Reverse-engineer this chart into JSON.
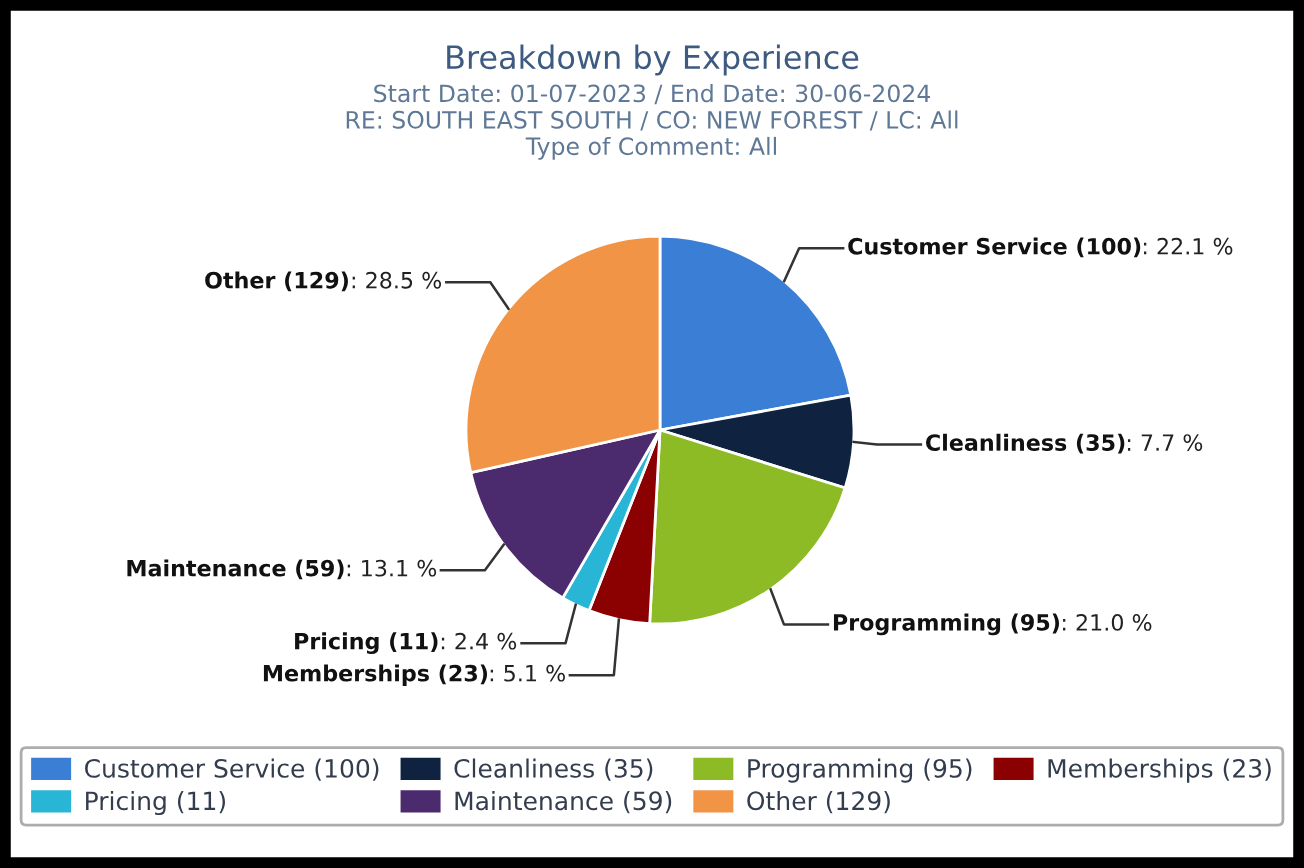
{
  "chart_data": {
    "type": "pie",
    "title": "Breakdown by Experience",
    "subtitle": "Start Date: 01-07-2023 / End Date: 30-06-2024\nRE: SOUTH EAST SOUTH / CO: NEW FOREST / LC: All\nType of Comment: All",
    "categories": [
      "Customer Service (100)",
      "Cleanliness (35)",
      "Programming (95)",
      "Memberships (23)",
      "Pricing (11)",
      "Maintenance (59)",
      "Other (129)"
    ],
    "values": [
      22.1,
      7.7,
      21.0,
      5.1,
      2.4,
      13.1,
      28.5
    ],
    "colors": [
      "#3a7fd5",
      "#0f2340",
      "#8dbb25",
      "#8b0000",
      "#29b5d6",
      "#4b2a6e",
      "#f29446"
    ],
    "value_labels": [
      ": 22.1 %",
      ": 7.7 %",
      ": 21.0 %",
      ": 5.1 %",
      ": 2.4 %",
      ": 13.1 %",
      ": 28.5 %"
    ],
    "legend": "bottom"
  }
}
